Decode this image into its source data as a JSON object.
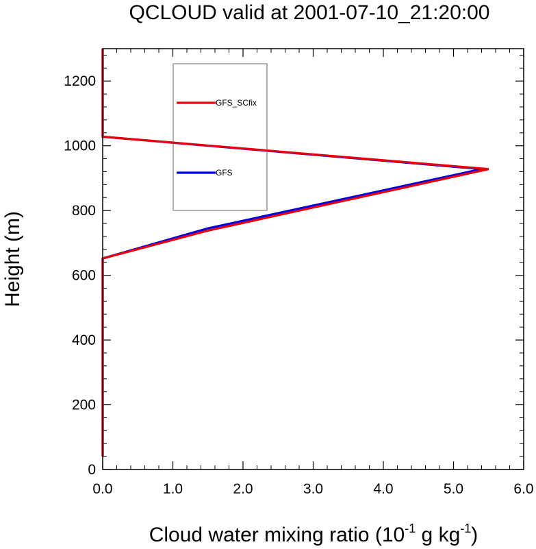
{
  "chart_data": {
    "type": "line",
    "title": "QCLOUD valid at 2001-07-10_21:20:00",
    "xlabel": "Cloud water mixing ratio (10",
    "xlabel_sup1": "-1",
    "xlabel_mid": " g kg",
    "xlabel_sup2": "-1",
    "xlabel_end": ")",
    "ylabel": "Height (m)",
    "xlim": [
      0,
      6
    ],
    "ylim": [
      0,
      1300
    ],
    "xticks": [
      0,
      1,
      2,
      3,
      4,
      5,
      6
    ],
    "xtick_labels": [
      "0.0",
      "1.0",
      "2.0",
      "3.0",
      "4.0",
      "5.0",
      "6.0"
    ],
    "yticks": [
      0,
      200,
      400,
      600,
      800,
      1000,
      1200
    ],
    "ytick_labels": [
      "0",
      "200",
      "400",
      "600",
      "800",
      "1000",
      "1200"
    ],
    "grid": false,
    "legend_position": "top-left",
    "series": [
      {
        "name": "GFS_SCfix",
        "color": "#e8000b",
        "x": [
          0,
          0,
          1.5,
          5.5,
          0,
          0
        ],
        "y": [
          40,
          652,
          738,
          928,
          1028,
          1300
        ]
      },
      {
        "name": "GFS",
        "color": "#0000e0",
        "x": [
          0,
          0,
          1.5,
          5.4,
          0,
          0
        ],
        "y": [
          40,
          652,
          745,
          928,
          1028,
          1300
        ]
      }
    ]
  }
}
